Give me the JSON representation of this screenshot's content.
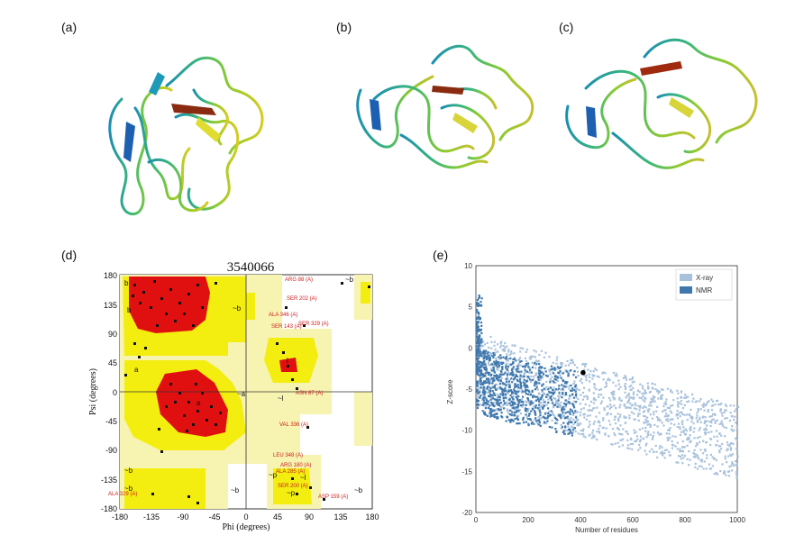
{
  "figure": {
    "panel_labels": [
      "(a)",
      "(b)",
      "(c)",
      "(d)",
      "(e)"
    ]
  },
  "panel_d": {
    "title": "3540066",
    "xlabel": "Phi (degrees)",
    "ylabel": "Psi (degrees)",
    "xticks": [
      "-180",
      "-135",
      "-90",
      "-45",
      "0",
      "45",
      "90",
      "135",
      "180"
    ],
    "yticks": [
      "180",
      "135",
      "90",
      "45",
      "0",
      "-45",
      "-90",
      "-135",
      "-180"
    ],
    "region_letters": [
      "b",
      "b",
      "a",
      "a",
      "l",
      "~b",
      "~l",
      "~b",
      "~p",
      "~b",
      "~a",
      "~l",
      "~p",
      "~b",
      "~b",
      "~b"
    ],
    "residue_labels": [
      "ARG 88 (A)",
      "SER 202 (A)",
      "ALA 346 (A)",
      "SER 329 (A)",
      "SER 143 (A)",
      "ASN 87 (A)",
      "VAL 336 (A)",
      "LEU 348 (A)",
      "ARG 180 (A)",
      "ALA 285 (A)",
      "SER 200 (A)",
      "ASP 159 (A)",
      "ALA 329 (A)"
    ],
    "colors": {
      "core": "#e01010",
      "allowed": "#f5f000",
      "generous": "#f5f0a0",
      "points": "#111111",
      "labels": "#cc2020"
    }
  },
  "panel_e": {
    "legend": [
      "X-ray",
      "NMR"
    ],
    "colors": {
      "xray": "#a9c2dc",
      "nmr": "#3f78ad",
      "point": "#000000"
    },
    "chart_data": {
      "type": "scatter",
      "xlabel": "Number of residues",
      "ylabel": "Z-score",
      "xlim": [
        0,
        1000
      ],
      "ylim": [
        -20,
        10
      ],
      "xticks": [
        "0",
        "200",
        "400",
        "600",
        "800",
        "1000"
      ],
      "yticks": [
        "10",
        "5",
        "0",
        "-5",
        "-10",
        "-15",
        "-20"
      ],
      "highlight_point": {
        "x": 410,
        "y": -3.0
      }
    }
  }
}
